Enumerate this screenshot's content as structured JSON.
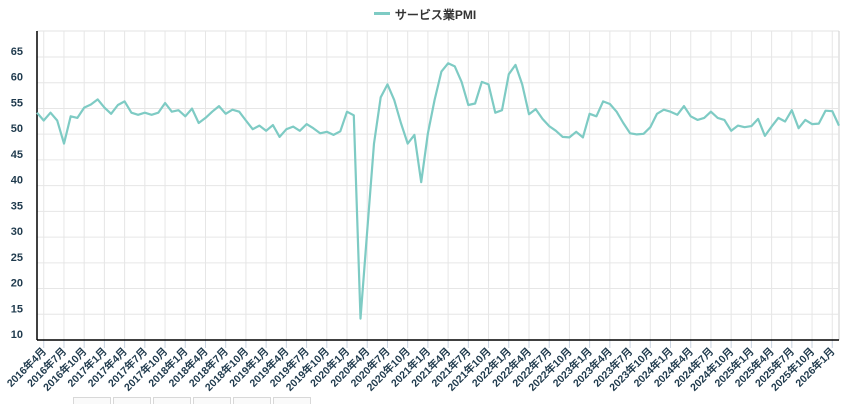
{
  "legend": {
    "label": "サービス業PMI",
    "color": "#7ecbc4"
  },
  "chart_data": {
    "type": "line",
    "title": "",
    "xlabel": "",
    "ylabel": "",
    "ylim": [
      10,
      65
    ],
    "yticks": [
      10,
      15,
      20,
      25,
      30,
      35,
      40,
      45,
      50,
      55,
      60,
      65
    ],
    "grid": true,
    "legend_position": "top-center",
    "x_tick_labels": [
      "2016年4月",
      "2016年7月",
      "2016年10月",
      "2017年1月",
      "2017年4月",
      "2017年7月",
      "2017年10月",
      "2018年1月",
      "2018年4月",
      "2018年7月",
      "2018年10月",
      "2019年1月",
      "2019年4月",
      "2019年7月",
      "2019年10月",
      "2020年1月",
      "2020年4月",
      "2020年7月",
      "2020年10月",
      "2021年1月",
      "2021年4月",
      "2021年7月",
      "2021年10月",
      "2022年1月",
      "2022年4月",
      "2022年7月",
      "2022年10月",
      "2023年1月",
      "2023年4月",
      "2023年7月",
      "2023年10月",
      "2024年1月",
      "2024年4月",
      "2024年7月",
      "2024年10月",
      "2025年1月",
      "2025年4月",
      "2025年7月",
      "2025年10月",
      "2026年1月"
    ],
    "first_period": "2016年3月",
    "series": [
      {
        "name": "サービス業PMI",
        "color": "#7ecbc4",
        "values": [
          53.0,
          51.5,
          53.0,
          51.5,
          47.0,
          52.3,
          52.0,
          54.0,
          54.6,
          55.6,
          54.0,
          52.8,
          54.5,
          55.2,
          53.0,
          52.6,
          53.0,
          52.6,
          53.0,
          54.9,
          53.2,
          53.5,
          52.3,
          53.8,
          51.0,
          52.0,
          53.2,
          54.3,
          52.8,
          53.6,
          53.2,
          51.5,
          49.8,
          50.5,
          49.5,
          50.6,
          48.3,
          49.8,
          50.3,
          49.5,
          50.8,
          50.0,
          49.0,
          49.3,
          48.7,
          49.4,
          53.2,
          52.5,
          13.0,
          30.0,
          47.0,
          56.0,
          58.5,
          55.5,
          51.0,
          47.0,
          48.7,
          39.5,
          49.0,
          55.5,
          61.0,
          62.6,
          62.0,
          59.0,
          54.5,
          54.8,
          59.0,
          58.5,
          53.0,
          53.5,
          60.5,
          62.3,
          58.5,
          52.7,
          53.7,
          51.8,
          50.4,
          49.5,
          48.3,
          48.2,
          49.3,
          48.2,
          52.8,
          52.3,
          55.2,
          54.7,
          53.2,
          51.0,
          49.0,
          48.8,
          48.9,
          50.2,
          52.8,
          53.6,
          53.2,
          52.6,
          54.3,
          52.3,
          51.6,
          52.0,
          53.2,
          52.0,
          51.6,
          49.5,
          50.5,
          50.2,
          50.4,
          51.8,
          48.5,
          50.3,
          52.0,
          51.3,
          53.5,
          50.0,
          51.6,
          50.8,
          50.9,
          53.4,
          53.3,
          50.5
        ]
      }
    ]
  }
}
